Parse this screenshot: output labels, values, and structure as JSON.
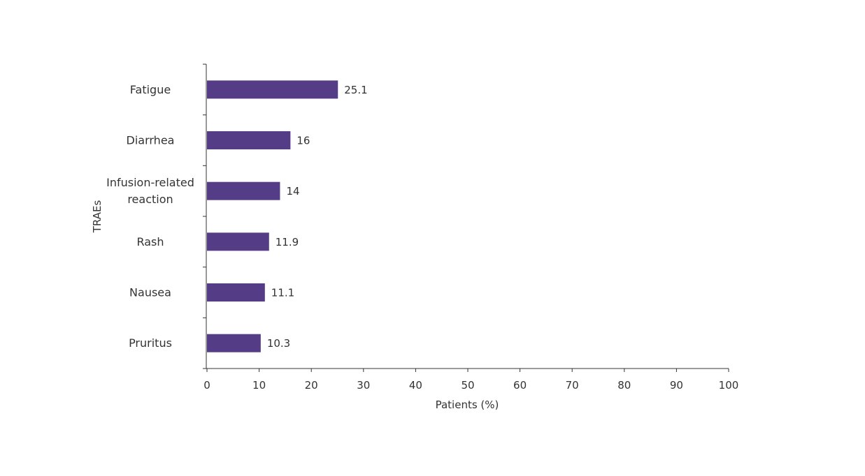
{
  "chart_data": {
    "type": "bar",
    "orientation": "horizontal",
    "categories": [
      "Fatigue",
      "Diarrhea",
      "Infusion-related reaction",
      "Rash",
      "Nausea",
      "Pruritus"
    ],
    "category_lines": [
      [
        "Fatigue"
      ],
      [
        "Diarrhea"
      ],
      [
        "Infusion-related",
        "reaction"
      ],
      [
        "Rash"
      ],
      [
        "Nausea"
      ],
      [
        "Pruritus"
      ]
    ],
    "values": [
      25.1,
      16,
      14,
      11.9,
      11.1,
      10.3
    ],
    "data_labels": [
      "25.1",
      "16",
      "14",
      "11.9",
      "11.1",
      "10.3"
    ],
    "xlabel": "Patients (%)",
    "ylabel": "TRAEs",
    "xlim": [
      0,
      100
    ],
    "xticks": [
      0,
      10,
      20,
      30,
      40,
      50,
      60,
      70,
      80,
      90,
      100
    ],
    "grid": false,
    "colors": {
      "bar": "#553c86",
      "axis": "#333333"
    }
  }
}
